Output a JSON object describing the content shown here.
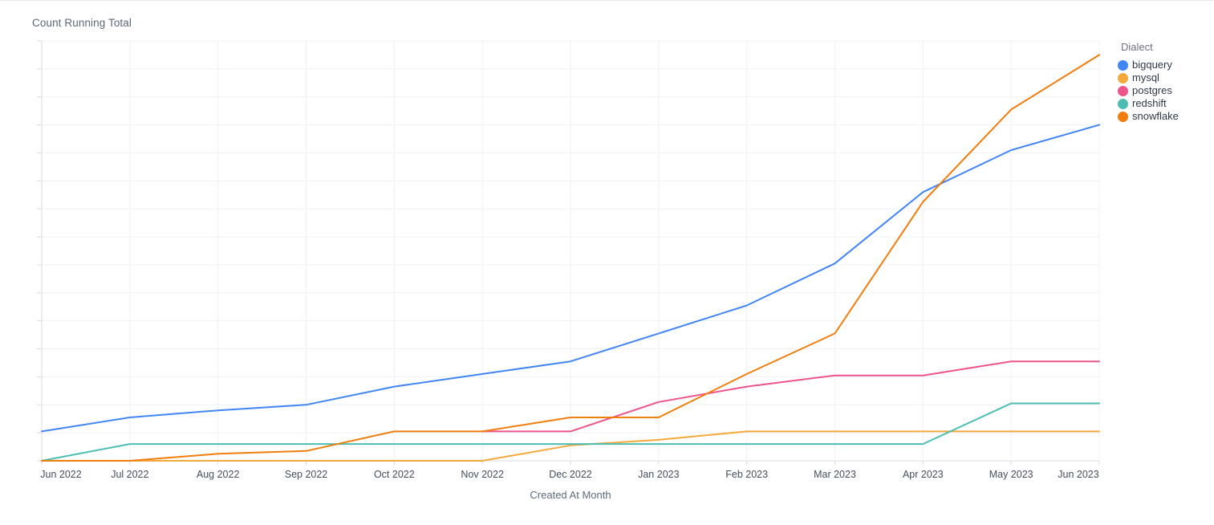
{
  "chart": {
    "title": "Count Running Total",
    "xlabel": "Created At Month",
    "legend_title": "Dialect"
  },
  "chart_data": {
    "type": "line",
    "title": "Count Running Total",
    "xlabel": "Created At Month",
    "ylabel": "",
    "legend_title": "Dialect",
    "legend_position": "top-right",
    "legend_entries": [
      "bigquery",
      "mysql",
      "postgres",
      "redshift",
      "snowflake"
    ],
    "grid": true,
    "y_axis_tick_labels_visible": false,
    "x": [
      "Jun 2022",
      "Jul 2022",
      "Aug 2022",
      "Sep 2022",
      "Oct 2022",
      "Nov 2022",
      "Dec 2022",
      "Jan 2023",
      "Feb 2023",
      "Mar 2023",
      "Apr 2023",
      "May 2023",
      "Jun 2023"
    ],
    "ylim": [
      0,
      30
    ],
    "series": [
      {
        "name": "bigquery",
        "color": "#4285F4",
        "values": [
          2.1,
          3.1,
          3.6,
          4.0,
          5.3,
          6.2,
          7.1,
          9.1,
          11.1,
          14.1,
          19.2,
          22.2,
          24.0
        ]
      },
      {
        "name": "mysql",
        "color": "#F3A93C",
        "values": [
          0,
          0,
          0,
          0,
          0,
          0,
          1.1,
          1.5,
          2.1,
          2.1,
          2.1,
          2.1,
          2.1
        ]
      },
      {
        "name": "postgres",
        "color": "#EE548C",
        "values": [
          null,
          null,
          null,
          null,
          null,
          2.1,
          2.1,
          4.2,
          5.3,
          6.1,
          6.1,
          7.1,
          7.1
        ]
      },
      {
        "name": "redshift",
        "color": "#4CBDB3",
        "values": [
          0,
          1.2,
          1.2,
          1.2,
          1.2,
          1.2,
          1.2,
          1.2,
          1.2,
          1.2,
          1.2,
          4.1,
          4.1
        ]
      },
      {
        "name": "snowflake",
        "color": "#F07D0E",
        "values": [
          0,
          0,
          0.5,
          0.7,
          2.1,
          2.1,
          3.1,
          3.1,
          6.2,
          9.1,
          18.5,
          25.1,
          29.0
        ]
      }
    ],
    "colors": {
      "axis_line": "#D7DBE2",
      "gridline": "#EFF1F4",
      "tick_label": "#454E5C"
    }
  }
}
